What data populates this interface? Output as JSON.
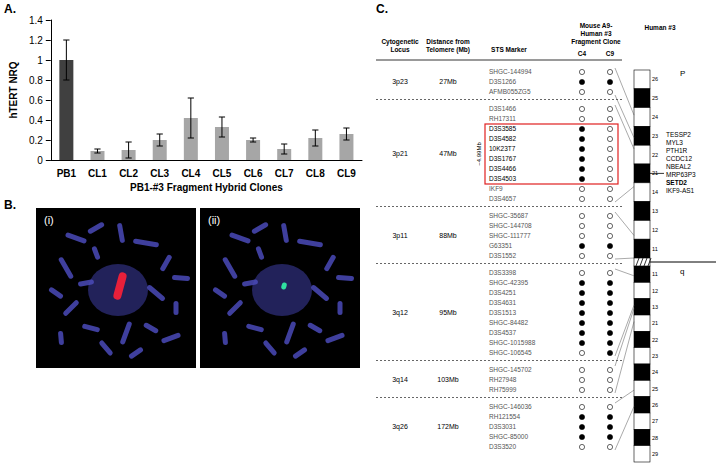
{
  "panel_labels": [
    "A.",
    "B.",
    "C."
  ],
  "chart_data": {
    "type": "bar",
    "y_label": "hTERT NRQ",
    "x_label": "PB1-#3 Fragment Hybrid Clones",
    "categories": [
      "PB1",
      "CL1",
      "CL2",
      "CL3",
      "CL4",
      "CL5",
      "CL6",
      "CL7",
      "CL8",
      "CL9"
    ],
    "values": [
      1.0,
      0.09,
      0.1,
      0.2,
      0.42,
      0.33,
      0.2,
      0.11,
      0.22,
      0.26
    ],
    "errors": [
      0.2,
      0.02,
      0.08,
      0.06,
      0.2,
      0.1,
      0.02,
      0.05,
      0.08,
      0.06
    ],
    "colors": [
      "#404040",
      "#a6a6a6",
      "#a6a6a6",
      "#a6a6a6",
      "#a6a6a6",
      "#a6a6a6",
      "#a6a6a6",
      "#a6a6a6",
      "#a6a6a6",
      "#a6a6a6"
    ],
    "ylim": [
      0,
      1.4
    ],
    "yticks": [
      0,
      0.2,
      0.4,
      0.6,
      0.8,
      1,
      1.2,
      1.4
    ],
    "grid": false
  },
  "images": {
    "labels": [
      "(i)",
      "(ii)"
    ]
  },
  "table": {
    "headers": {
      "locus": [
        "Cytogenetic",
        "Locus"
      ],
      "distance": [
        "Distance from",
        "Telomere (Mb)"
      ],
      "sts": [
        "STS Marker"
      ],
      "clone": [
        "Mouse A9-",
        "Human #3",
        "Fragment Clone"
      ],
      "human": [
        "Human #3"
      ]
    },
    "clones": [
      "C4",
      "C9"
    ],
    "boxed_label": "~4.99Mb",
    "groups": [
      {
        "locus": "3p23",
        "distance": "27Mb",
        "markers": [
          {
            "name": "SHGC-144994",
            "C4": false,
            "C9": false
          },
          {
            "name": "D3S1266",
            "C4": true,
            "C9": true
          },
          {
            "name": "AFMB055ZG5",
            "C4": false,
            "C9": false
          }
        ]
      },
      {
        "locus": "3p21",
        "distance": "47Mb",
        "markers": [
          {
            "name": "D3S1466",
            "C4": false,
            "C9": false
          },
          {
            "name": "RH17311",
            "C4": false,
            "C9": false
          },
          {
            "name": "D3S3585",
            "C4": true,
            "C9": false,
            "boxed": true
          },
          {
            "name": "D3S4582",
            "C4": true,
            "C9": false,
            "boxed": true
          },
          {
            "name": "10K23T7",
            "C4": true,
            "C9": false,
            "boxed": true
          },
          {
            "name": "D3S1767",
            "C4": true,
            "C9": false,
            "boxed": true
          },
          {
            "name": "D3S4466",
            "C4": true,
            "C9": false,
            "boxed": true
          },
          {
            "name": "D3S4503",
            "C4": true,
            "C9": false,
            "boxed": true
          },
          {
            "name": "IKF9",
            "C4": false,
            "C9": false
          },
          {
            "name": "D3S4657",
            "C4": false,
            "C9": false
          }
        ]
      },
      {
        "locus": "3p11",
        "distance": "88Mb",
        "markers": [
          {
            "name": "SHGC-35687",
            "C4": false,
            "C9": false
          },
          {
            "name": "SHGC-144708",
            "C4": false,
            "C9": false
          },
          {
            "name": "SHGC-111777",
            "C4": false,
            "C9": false
          },
          {
            "name": "G63351",
            "C4": true,
            "C9": true
          },
          {
            "name": "D3S1552",
            "C4": false,
            "C9": false
          }
        ]
      },
      {
        "locus": "3q12",
        "distance": "95Mb",
        "markers": [
          {
            "name": "D3S3398",
            "C4": false,
            "C9": false
          },
          {
            "name": "SHGC-42395",
            "C4": true,
            "C9": true
          },
          {
            "name": "D3S4251",
            "C4": true,
            "C9": true
          },
          {
            "name": "D3S4631",
            "C4": true,
            "C9": true
          },
          {
            "name": "D3S1513",
            "C4": true,
            "C9": true
          },
          {
            "name": "SHGC-84482",
            "C4": true,
            "C9": true
          },
          {
            "name": "D3S4537",
            "C4": true,
            "C9": true
          },
          {
            "name": "SHGC-1015988",
            "C4": true,
            "C9": true
          },
          {
            "name": "SHGC-106545",
            "C4": false,
            "C9": true
          }
        ]
      },
      {
        "locus": "3q14",
        "distance": "103Mb",
        "markers": [
          {
            "name": "SHGC-145702",
            "C4": false,
            "C9": false
          },
          {
            "name": "RH27948",
            "C4": false,
            "C9": false
          },
          {
            "name": "RH75999",
            "C4": false,
            "C9": false
          }
        ]
      },
      {
        "locus": "3q26",
        "distance": "172Mb",
        "markers": [
          {
            "name": "SHGC-146036",
            "C4": false,
            "C9": false
          },
          {
            "name": "RH121554",
            "C4": true,
            "C9": true
          },
          {
            "name": "D3S3031",
            "C4": true,
            "C9": true
          },
          {
            "name": "SHGC-85000",
            "C4": true,
            "C9": true
          },
          {
            "name": "D3S3520",
            "C4": false,
            "C9": false
          }
        ]
      }
    ]
  },
  "ideogram": {
    "arms": [
      "P",
      "q"
    ],
    "p_bands": [
      "26",
      "25",
      "24",
      "23",
      "22",
      "21",
      "14",
      "13",
      "12",
      "11"
    ],
    "q_bands": [
      "11",
      "12",
      "13",
      "21",
      "22",
      "23",
      "24",
      "25",
      "26",
      "27",
      "28",
      "29"
    ],
    "genes": [
      "TESSP2",
      "MYL3",
      "PTH1R",
      "CCDC12",
      "NBEAL2",
      "MRP63P3",
      "SETD2",
      "IKF9-AS1"
    ],
    "bold_gene": "SETD2"
  }
}
